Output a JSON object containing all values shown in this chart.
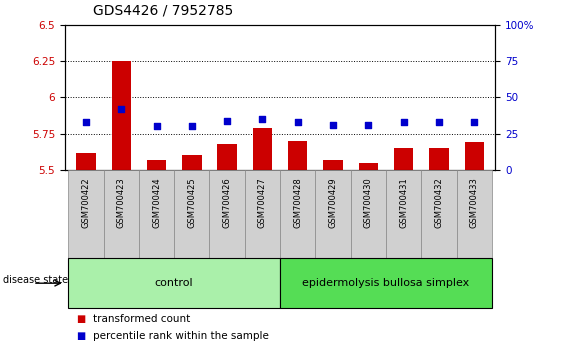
{
  "title": "GDS4426 / 7952785",
  "samples": [
    "GSM700422",
    "GSM700423",
    "GSM700424",
    "GSM700425",
    "GSM700426",
    "GSM700427",
    "GSM700428",
    "GSM700429",
    "GSM700430",
    "GSM700431",
    "GSM700432",
    "GSM700433"
  ],
  "bar_values": [
    5.62,
    6.25,
    5.57,
    5.6,
    5.68,
    5.79,
    5.7,
    5.57,
    5.55,
    5.65,
    5.65,
    5.69
  ],
  "dot_values": [
    5.83,
    5.92,
    5.8,
    5.8,
    5.84,
    5.85,
    5.83,
    5.81,
    5.81,
    5.83,
    5.83,
    5.83
  ],
  "ylim_left": [
    5.5,
    6.5
  ],
  "yticks_left": [
    5.5,
    5.75,
    6.0,
    6.25,
    6.5
  ],
  "ytick_labels_left": [
    "5.5",
    "5.75",
    "6",
    "6.25",
    "6.5"
  ],
  "ylim_right": [
    0,
    100
  ],
  "yticks_right": [
    0,
    25,
    50,
    75,
    100
  ],
  "ytick_labels_right": [
    "0",
    "25",
    "50",
    "75",
    "100%"
  ],
  "bar_color": "#cc0000",
  "dot_color": "#0000cc",
  "bar_width": 0.55,
  "group_configs": [
    {
      "start": 0,
      "end": 5,
      "label": "control",
      "color": "#aaf0aa"
    },
    {
      "start": 6,
      "end": 11,
      "label": "epidermolysis bullosa simplex",
      "color": "#55dd55"
    }
  ],
  "disease_state_label": "disease state",
  "legend_items": [
    {
      "label": "transformed count",
      "color": "#cc0000"
    },
    {
      "label": "percentile rank within the sample",
      "color": "#0000cc"
    }
  ],
  "title_fontsize": 10,
  "tick_fontsize": 7.5,
  "sample_fontsize": 6,
  "group_fontsize": 8,
  "legend_fontsize": 7.5,
  "background_color": "#ffffff",
  "xticklabel_bg": "#d0d0d0",
  "xticklabel_border": "#888888"
}
